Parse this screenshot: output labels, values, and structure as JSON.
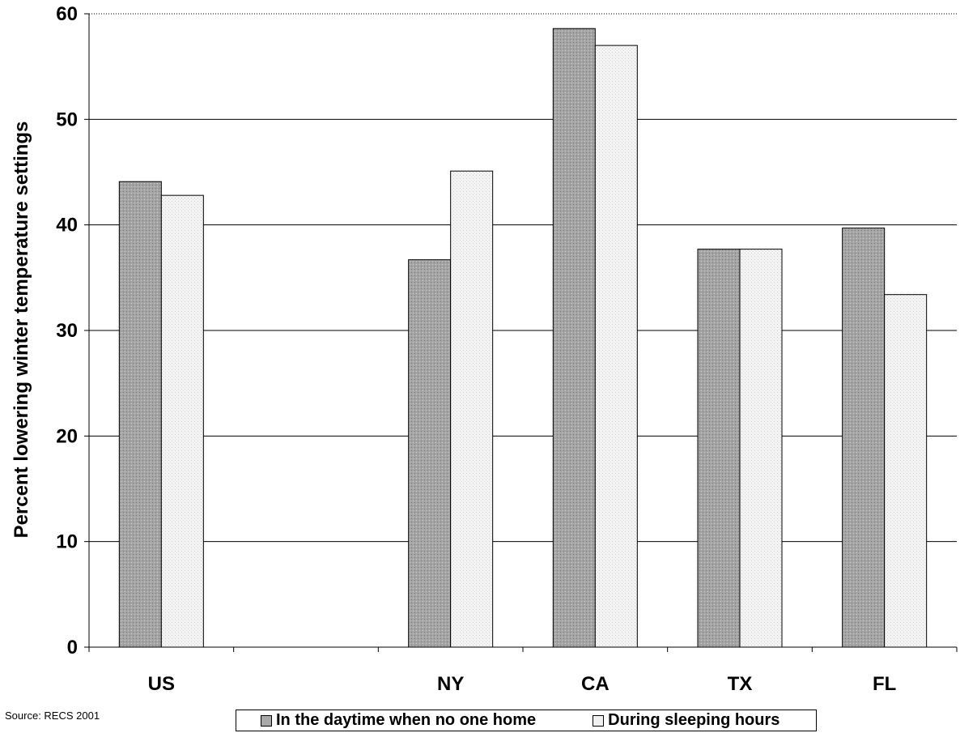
{
  "chart_data": {
    "type": "bar",
    "categories": [
      "US",
      "",
      "NY",
      "CA",
      "TX",
      "FL"
    ],
    "series": [
      {
        "name": "In the daytime when no one home",
        "values": [
          44.1,
          null,
          36.7,
          58.6,
          37.7,
          39.7
        ],
        "color": "#a9a9a9"
      },
      {
        "name": "During sleeping hours",
        "values": [
          42.8,
          null,
          45.1,
          57.0,
          37.7,
          33.4
        ],
        "color": "#f0f0f0"
      }
    ],
    "ylabel": "Percent lowering winter temperature settings",
    "xlabel": "",
    "ylim": [
      0,
      60
    ],
    "yticks": [
      0,
      10,
      20,
      30,
      40,
      50,
      60
    ],
    "grid": true,
    "legend_position": "bottom"
  },
  "source_text": "Source: RECS 2001"
}
